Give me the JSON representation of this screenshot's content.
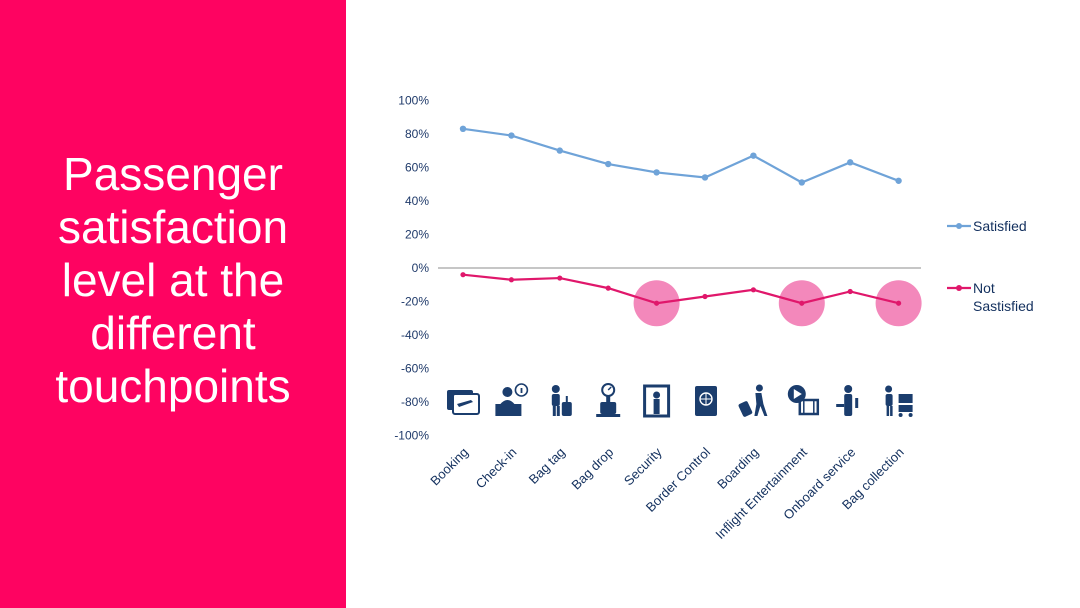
{
  "slide": {
    "title": "Passenger\nsatisfaction\nlevel at the\ndifferent\ntouchpoints"
  },
  "colors": {
    "panel": "#fe0361",
    "satisfied": "#6fa3d8",
    "not_satisfied": "#e0176b",
    "highlight": "#f27bb4",
    "icon": "#1b3d6d"
  },
  "chart_data": {
    "type": "line",
    "categories": [
      "Booking",
      "Check-in",
      "Bag tag",
      "Bag drop",
      "Security",
      "Border Control",
      "Boarding",
      "Inflight Entertainment",
      "Onboard service",
      "Bag collection"
    ],
    "series": [
      {
        "name": "Satisfied",
        "values": [
          83,
          79,
          70,
          62,
          57,
          54,
          67,
          51,
          63,
          52
        ]
      },
      {
        "name": "Not Sastisfied",
        "values": [
          -4,
          -7,
          -6,
          -12,
          -21,
          -17,
          -13,
          -21,
          -14,
          -21
        ]
      }
    ],
    "y_ticks": [
      "100%",
      "80%",
      "60%",
      "40%",
      "20%",
      "0%",
      "-20%",
      "-40%",
      "-60%",
      "-80%",
      "-100%"
    ],
    "ylim": [
      -100,
      100
    ],
    "highlighted_categories": [
      "Security",
      "Inflight Entertainment",
      "Bag collection"
    ],
    "category_icons": [
      "boarding-pass-icon",
      "check-in-desk-icon",
      "bag-tag-icon",
      "bag-drop-icon",
      "security-gate-icon",
      "passport-icon",
      "boarding-icon",
      "inflight-entertainment-icon",
      "onboard-service-icon",
      "bag-collection-icon"
    ],
    "legend_position": "right",
    "grid": false
  }
}
